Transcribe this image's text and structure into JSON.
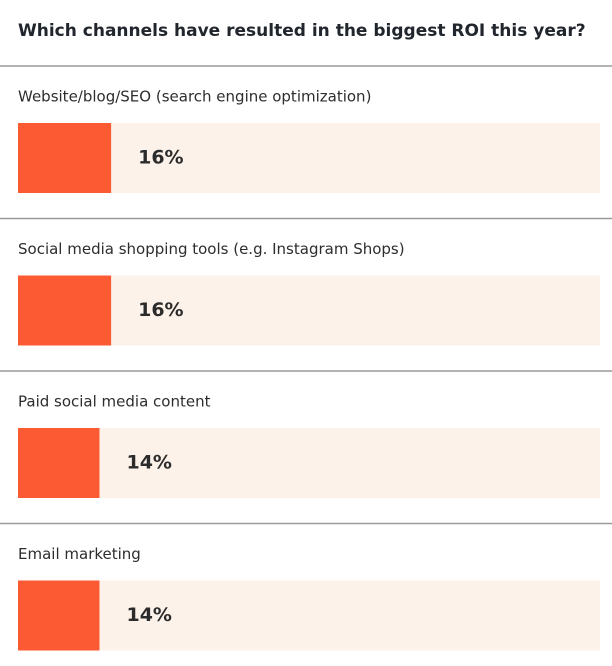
{
  "chart_data": {
    "type": "bar",
    "title": "Which channels have resulted in the biggest ROI this year?",
    "categories": [
      "Website/blog/SEO (search engine optimization)",
      "Social media shopping tools (e.g. Instagram Shops)",
      "Paid social media content",
      "Email marketing"
    ],
    "values": [
      16,
      16,
      14,
      14
    ],
    "value_labels": [
      "16%",
      "16%",
      "14%",
      "14%"
    ],
    "color": "#fc5a32",
    "track_color": "#fdf2ea",
    "xlim": [
      0,
      100
    ]
  }
}
